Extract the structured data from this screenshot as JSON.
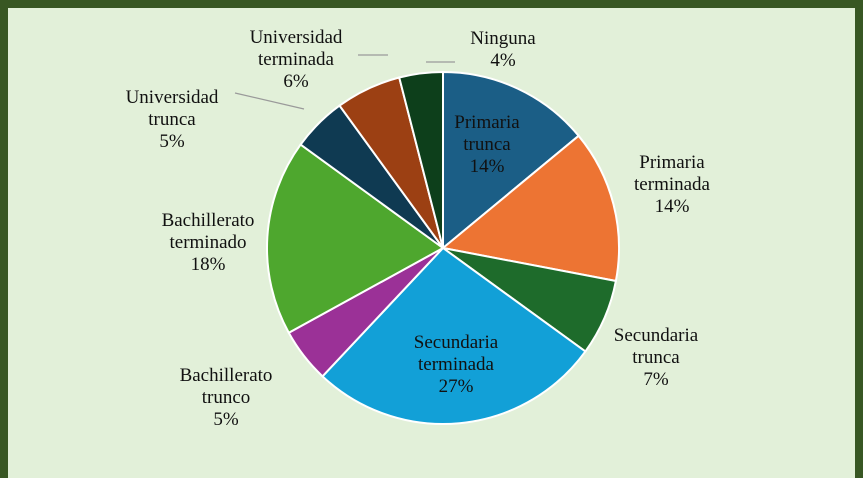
{
  "chart_data": {
    "type": "pie",
    "categories": [
      "Primaria trunca",
      "Primaria terminada",
      "Secundaria trunca",
      "Secundaria terminada",
      "Bachillerato trunco",
      "Bachillerato terminado",
      "Universidad trunca",
      "Universidad terminada",
      "Ninguna"
    ],
    "values": [
      14,
      14,
      7,
      27,
      5,
      18,
      5,
      6,
      4
    ],
    "value_labels": [
      "14%",
      "14%",
      "7%",
      "27%",
      "5%",
      "18%",
      "5%",
      "6%",
      "4%"
    ],
    "colors": [
      "#1b5e86",
      "#ed7433",
      "#1e6b2b",
      "#12a0d7",
      "#9b3197",
      "#4ea72e",
      "#0f3a52",
      "#9c4013",
      "#0d3f1b"
    ]
  }
}
